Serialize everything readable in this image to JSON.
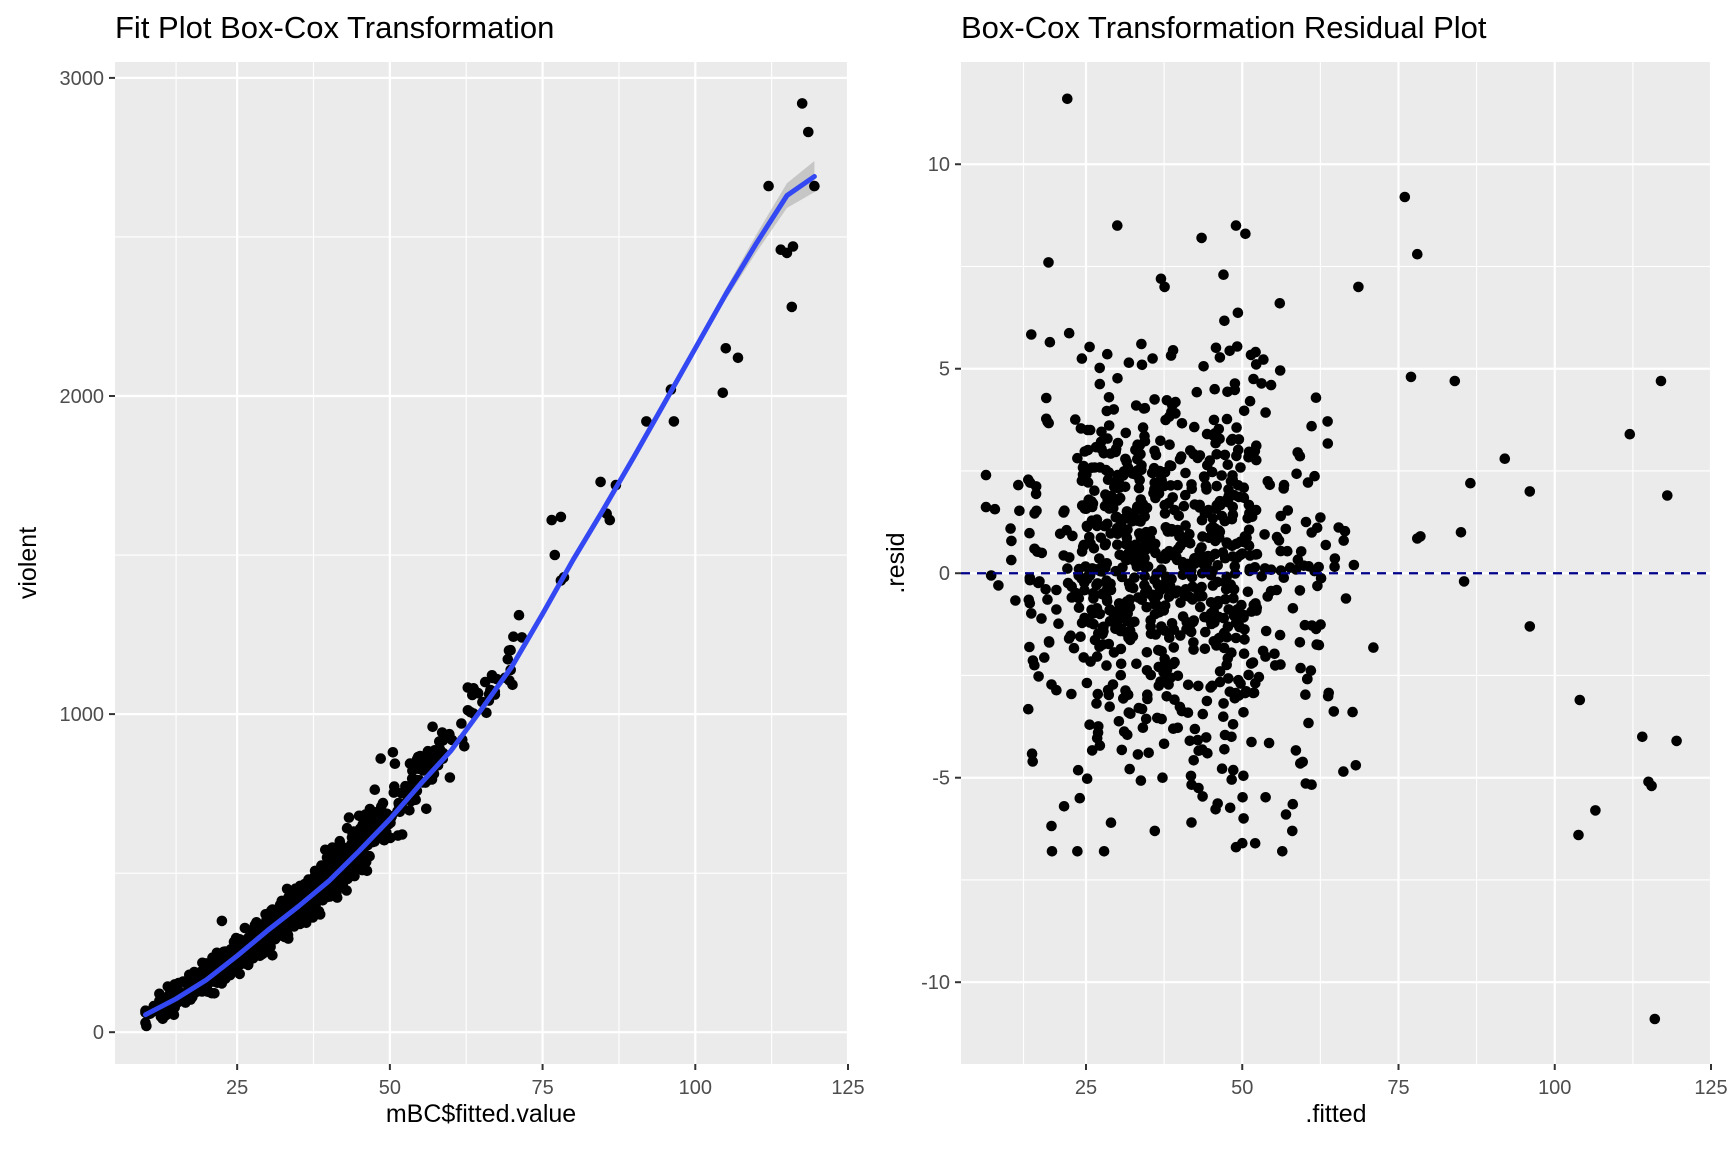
{
  "chart_data": [
    {
      "type": "scatter",
      "title": "Fit Plot Box-Cox Transformation",
      "xlabel": "mBC$fitted.value",
      "ylabel": "violent",
      "xlim": [
        5,
        125
      ],
      "ylim": [
        -100,
        3050
      ],
      "xticks": [
        25,
        50,
        75,
        100,
        125
      ],
      "yticks": [
        0,
        1000,
        2000,
        3000
      ],
      "xtick_labels": [
        "25",
        "50",
        "75",
        "100",
        "125"
      ],
      "ytick_labels": [
        "0",
        "1000",
        "2000",
        "3000"
      ],
      "grid": true,
      "colors": {
        "points": "#000000",
        "smooth": "#3348F2",
        "ribbon": "#9A9A9A",
        "panel": "#EBEBEB"
      },
      "smooth_line": {
        "method": "loess",
        "x": [
          10,
          15,
          20,
          25,
          30,
          35,
          40,
          45,
          50,
          55,
          60,
          65,
          70,
          75,
          80,
          85,
          90,
          95,
          100,
          105,
          110,
          115,
          119.5
        ],
        "y": [
          55,
          105,
          165,
          240,
          320,
          395,
          475,
          570,
          670,
          780,
          885,
          1015,
          1150,
          1315,
          1485,
          1645,
          1810,
          1980,
          2150,
          2320,
          2480,
          2630,
          2690
        ]
      },
      "highlighted_points": [
        {
          "x": 117.5,
          "y": 2920
        },
        {
          "x": 118.5,
          "y": 2830
        },
        {
          "x": 112.0,
          "y": 2660
        },
        {
          "x": 119.5,
          "y": 2660
        },
        {
          "x": 114.0,
          "y": 2460
        },
        {
          "x": 115.0,
          "y": 2450
        },
        {
          "x": 116.0,
          "y": 2470
        },
        {
          "x": 115.8,
          "y": 2280
        },
        {
          "x": 105.0,
          "y": 2150
        },
        {
          "x": 107.0,
          "y": 2120
        },
        {
          "x": 104.5,
          "y": 2010
        },
        {
          "x": 96.0,
          "y": 2020
        },
        {
          "x": 96.5,
          "y": 1920
        },
        {
          "x": 92.0,
          "y": 1920
        },
        {
          "x": 84.5,
          "y": 1730
        },
        {
          "x": 87.0,
          "y": 1720
        },
        {
          "x": 85.5,
          "y": 1630
        },
        {
          "x": 86.0,
          "y": 1610
        },
        {
          "x": 76.5,
          "y": 1610
        },
        {
          "x": 78.0,
          "y": 1620
        },
        {
          "x": 77.0,
          "y": 1500
        },
        {
          "x": 78.5,
          "y": 1430
        },
        {
          "x": 78.0,
          "y": 1420
        },
        {
          "x": 22.5,
          "y": 350
        },
        {
          "x": 48.5,
          "y": 860
        },
        {
          "x": 50.5,
          "y": 880
        },
        {
          "x": 57.0,
          "y": 960
        },
        {
          "x": 63.5,
          "y": 1060
        },
        {
          "x": 67.5,
          "y": 1110
        },
        {
          "x": 69.5,
          "y": 1200
        }
      ],
      "point_cloud": {
        "n": 960,
        "x_range": [
          10,
          72
        ],
        "relationship": "y ≈ 0.138·x² + 7.6·x - 35"
      }
    },
    {
      "type": "scatter",
      "title": "Box-Cox Transformation Residual Plot",
      "xlabel": ".fitted",
      "ylabel": ".resid",
      "xlim": [
        5,
        125
      ],
      "ylim": [
        -12,
        12.5
      ],
      "xticks": [
        25,
        50,
        75,
        100,
        125
      ],
      "yticks": [
        -10,
        -5,
        0,
        5,
        10
      ],
      "xtick_labels": [
        "25",
        "50",
        "75",
        "100",
        "125"
      ],
      "ytick_labels": [
        "-10",
        "-5",
        "0",
        "5",
        "10"
      ],
      "grid": true,
      "colors": {
        "points": "#000000",
        "reference_line": "#00008B",
        "panel": "#EBEBEB"
      },
      "reference_line": {
        "y": 0,
        "style": "dashed"
      },
      "highlighted_points": [
        {
          "x": 22.0,
          "y": 11.6
        },
        {
          "x": 30.0,
          "y": 8.5
        },
        {
          "x": 43.5,
          "y": 8.2
        },
        {
          "x": 49.0,
          "y": 8.5
        },
        {
          "x": 50.5,
          "y": 8.3
        },
        {
          "x": 76.0,
          "y": 9.2
        },
        {
          "x": 78.0,
          "y": 7.8
        },
        {
          "x": 19.0,
          "y": 7.6
        },
        {
          "x": 37.0,
          "y": 7.2
        },
        {
          "x": 47.0,
          "y": 7.3
        },
        {
          "x": 56.0,
          "y": 6.6
        },
        {
          "x": 77.0,
          "y": 4.8
        },
        {
          "x": 84.0,
          "y": 4.7
        },
        {
          "x": 117.0,
          "y": 4.7
        },
        {
          "x": 112.0,
          "y": 3.4
        },
        {
          "x": 92.0,
          "y": 2.8
        },
        {
          "x": 86.5,
          "y": 2.2
        },
        {
          "x": 96.0,
          "y": 2.0
        },
        {
          "x": 118.0,
          "y": 1.9
        },
        {
          "x": 85.0,
          "y": 1.0
        },
        {
          "x": 78.5,
          "y": 0.9
        },
        {
          "x": 78.0,
          "y": 0.85
        },
        {
          "x": 85.5,
          "y": -0.2
        },
        {
          "x": 96.0,
          "y": -1.3
        },
        {
          "x": 104.0,
          "y": -3.1
        },
        {
          "x": 114.0,
          "y": -4.0
        },
        {
          "x": 119.5,
          "y": -4.1
        },
        {
          "x": 115.0,
          "y": -5.1
        },
        {
          "x": 115.5,
          "y": -5.2
        },
        {
          "x": 106.5,
          "y": -5.8
        },
        {
          "x": 103.8,
          "y": -6.4
        },
        {
          "x": 116.0,
          "y": -10.9
        },
        {
          "x": 49.0,
          "y": -6.7
        },
        {
          "x": 50.0,
          "y": -6.6
        },
        {
          "x": 36.0,
          "y": -6.3
        },
        {
          "x": 29.0,
          "y": -6.1
        },
        {
          "x": 58.0,
          "y": -6.3
        },
        {
          "x": 57.0,
          "y": -5.9
        },
        {
          "x": 21.5,
          "y": -5.7
        },
        {
          "x": 24.0,
          "y": -5.5
        },
        {
          "x": 9.0,
          "y": 2.4
        }
      ],
      "point_cloud": {
        "n": 900,
        "x_range": [
          9,
          71
        ],
        "y_sd": 2.5
      }
    }
  ]
}
